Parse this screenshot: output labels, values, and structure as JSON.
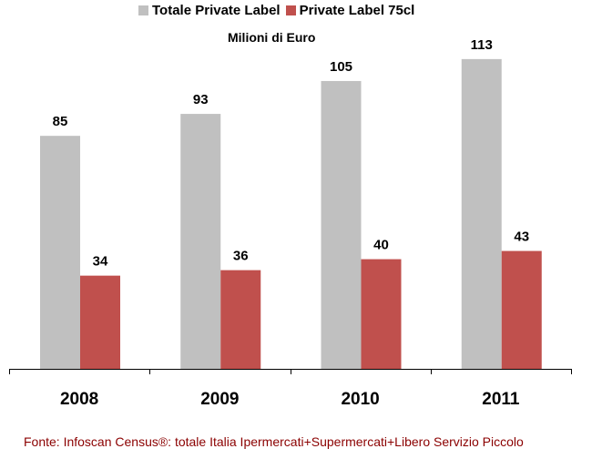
{
  "chart_data": {
    "type": "bar",
    "title": "Milioni di Euro",
    "categories": [
      "2008",
      "2009",
      "2010",
      "2011"
    ],
    "series": [
      {
        "name": "Totale Private Label",
        "color": "#c0c0c0",
        "values": [
          85,
          93,
          105,
          113
        ]
      },
      {
        "name": "Private Label 75cl",
        "color": "#c0504d",
        "values": [
          34,
          36,
          40,
          43
        ]
      }
    ],
    "ylim": [
      0,
      135
    ],
    "legend": "top",
    "grid": false,
    "source": "Fonte: Infoscan Census®: totale Italia Ipermercati+Supermercati+Libero Servizio Piccolo"
  }
}
